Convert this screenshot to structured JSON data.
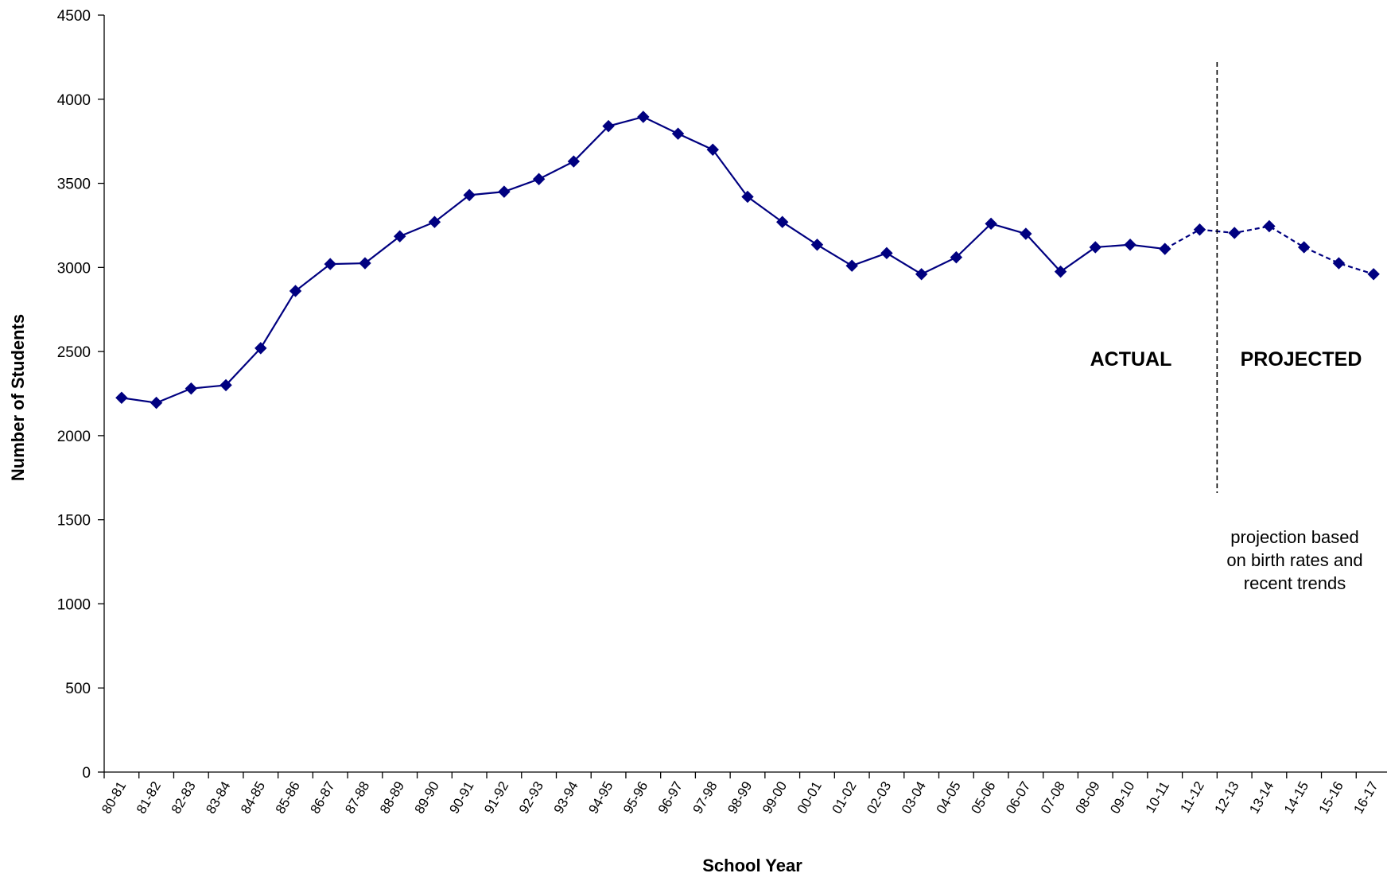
{
  "chart_data": {
    "type": "line",
    "xlabel": "School Year",
    "ylabel": "Number of Students",
    "ylim": [
      0,
      4500
    ],
    "yticks": [
      0,
      500,
      1000,
      1500,
      2000,
      2500,
      3000,
      3500,
      4000,
      4500
    ],
    "grid": false,
    "legend": "none",
    "line_color": "#000080",
    "categories": [
      "80-81",
      "81-82",
      "82-83",
      "83-84",
      "84-85",
      "85-86",
      "86-87",
      "87-88",
      "88-89",
      "89-90",
      "90-91",
      "91-92",
      "92-93",
      "93-94",
      "94-95",
      "95-96",
      "96-97",
      "97-98",
      "98-99",
      "99-00",
      "00-01",
      "01-02",
      "02-03",
      "03-04",
      "04-05",
      "05-06",
      "06-07",
      "07-08",
      "08-09",
      "09-10",
      "10-11",
      "11-12",
      "12-13",
      "13-14",
      "14-15",
      "15-16",
      "16-17"
    ],
    "series": [
      {
        "values": [
          2225,
          2195,
          2280,
          2300,
          2520,
          2860,
          3020,
          3025,
          3185,
          3270,
          3430,
          3450,
          3525,
          3630,
          3840,
          3895,
          3795,
          3700,
          3420,
          3270,
          3135,
          3010,
          3085,
          2960,
          3060,
          3260,
          3200,
          2975,
          3120,
          3135,
          3110,
          3225,
          3205,
          3245,
          3120,
          3025,
          2960
        ],
        "actual_through": "11-12",
        "projected_from": "11-12"
      }
    ],
    "divider_after": "11-12",
    "annotations": {
      "actual": "ACTUAL",
      "projected": "PROJECTED",
      "note_lines": [
        "projection based",
        "on birth rates and",
        "recent trends"
      ]
    }
  }
}
